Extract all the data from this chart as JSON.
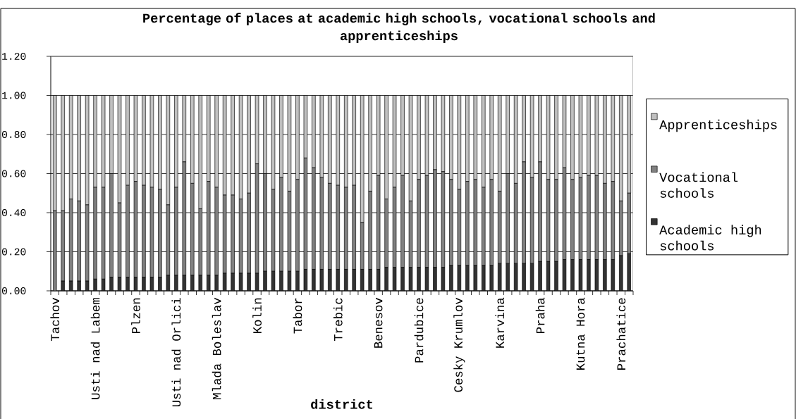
{
  "chart_data": {
    "type": "bar",
    "stacked": true,
    "title": "Percentage of places at academic high schools, vocational schools and apprenticeships",
    "xlabel": "district",
    "categories": [
      "Tachov",
      null,
      null,
      null,
      null,
      "Usti nad Labem",
      null,
      null,
      null,
      null,
      "Plzen",
      null,
      null,
      null,
      null,
      "Usti nad Orlici",
      null,
      null,
      null,
      null,
      "Mlada Boleslav",
      null,
      null,
      null,
      null,
      "Kolin",
      null,
      null,
      null,
      null,
      "Tabor",
      null,
      null,
      null,
      null,
      "Trebic",
      null,
      null,
      null,
      null,
      "Benesov",
      null,
      null,
      null,
      null,
      "Pardubice",
      null,
      null,
      null,
      null,
      "Cesky Krumlov",
      null,
      null,
      null,
      null,
      "Karvina",
      null,
      null,
      null,
      null,
      "Praha",
      null,
      null,
      null,
      null,
      "Kutna Hora",
      null,
      null,
      null,
      null,
      "Prachatice",
      null
    ],
    "series": [
      {
        "name": "Academic high schools",
        "color": "#333333",
        "values": [
          0,
          0.05,
          0.05,
          0.05,
          0.05,
          0.06,
          0.06,
          0.07,
          0.07,
          0.07,
          0.07,
          0.07,
          0.07,
          0.07,
          0.08,
          0.08,
          0.08,
          0.08,
          0.08,
          0.08,
          0.08,
          0.09,
          0.09,
          0.09,
          0.09,
          0.09,
          0.1,
          0.1,
          0.1,
          0.1,
          0.1,
          0.11,
          0.11,
          0.11,
          0.11,
          0.11,
          0.11,
          0.11,
          0.11,
          0.11,
          0.11,
          0.12,
          0.12,
          0.12,
          0.12,
          0.12,
          0.12,
          0.12,
          0.12,
          0.13,
          0.13,
          0.13,
          0.13,
          0.13,
          0.13,
          0.14,
          0.14,
          0.14,
          0.14,
          0.14,
          0.15,
          0.15,
          0.15,
          0.16,
          0.16,
          0.16,
          0.16,
          0.16,
          0.16,
          0.16,
          0.18,
          0.19
        ]
      },
      {
        "name": "Vocational schools",
        "color": "#808080",
        "values": [
          0.41,
          0.36,
          0.42,
          0.41,
          0.39,
          0.47,
          0.47,
          0.53,
          0.38,
          0.47,
          0.49,
          0.47,
          0.46,
          0.45,
          0.36,
          0.45,
          0.58,
          0.47,
          0.34,
          0.48,
          0.45,
          0.4,
          0.4,
          0.38,
          0.41,
          0.56,
          0.5,
          0.42,
          0.48,
          0.41,
          0.47,
          0.57,
          0.52,
          0.47,
          0.44,
          0.43,
          0.42,
          0.43,
          0.24,
          0.4,
          0.48,
          0.35,
          0.41,
          0.47,
          0.34,
          0.45,
          0.47,
          0.5,
          0.49,
          0.44,
          0.39,
          0.43,
          0.44,
          0.4,
          0.44,
          0.37,
          0.46,
          0.41,
          0.52,
          0.44,
          0.51,
          0.42,
          0.42,
          0.47,
          0.41,
          0.42,
          0.43,
          0.43,
          0.39,
          0.4,
          0.28,
          0.31
        ]
      },
      {
        "name": "Apprenticeships",
        "color": "#c0c0c0",
        "values": [
          0.59,
          0.59,
          0.53,
          0.54,
          0.56,
          0.47,
          0.47,
          0.4,
          0.55,
          0.46,
          0.44,
          0.46,
          0.47,
          0.48,
          0.56,
          0.47,
          0.34,
          0.45,
          0.58,
          0.44,
          0.47,
          0.51,
          0.51,
          0.53,
          0.5,
          0.35,
          0.4,
          0.48,
          0.42,
          0.49,
          0.43,
          0.32,
          0.37,
          0.42,
          0.45,
          0.46,
          0.47,
          0.46,
          0.65,
          0.49,
          0.41,
          0.53,
          0.47,
          0.41,
          0.54,
          0.43,
          0.41,
          0.38,
          0.39,
          0.43,
          0.48,
          0.44,
          0.43,
          0.47,
          0.43,
          0.49,
          0.4,
          0.45,
          0.34,
          0.42,
          0.34,
          0.43,
          0.43,
          0.37,
          0.43,
          0.42,
          0.41,
          0.41,
          0.45,
          0.44,
          0.54,
          0.5
        ]
      }
    ],
    "ylim": [
      0,
      1.2
    ],
    "yticks": [
      {
        "value": 0,
        "label": "0.00"
      },
      {
        "value": 0.2,
        "label": "0.20"
      },
      {
        "value": 0.4,
        "label": "0.40"
      },
      {
        "value": 0.6,
        "label": "0.60"
      },
      {
        "value": 0.8,
        "label": "0.80"
      },
      {
        "value": 1.0,
        "label": "1.00"
      },
      {
        "value": 1.2,
        "label": "1.20"
      }
    ],
    "grid": "y",
    "legend": "right"
  }
}
